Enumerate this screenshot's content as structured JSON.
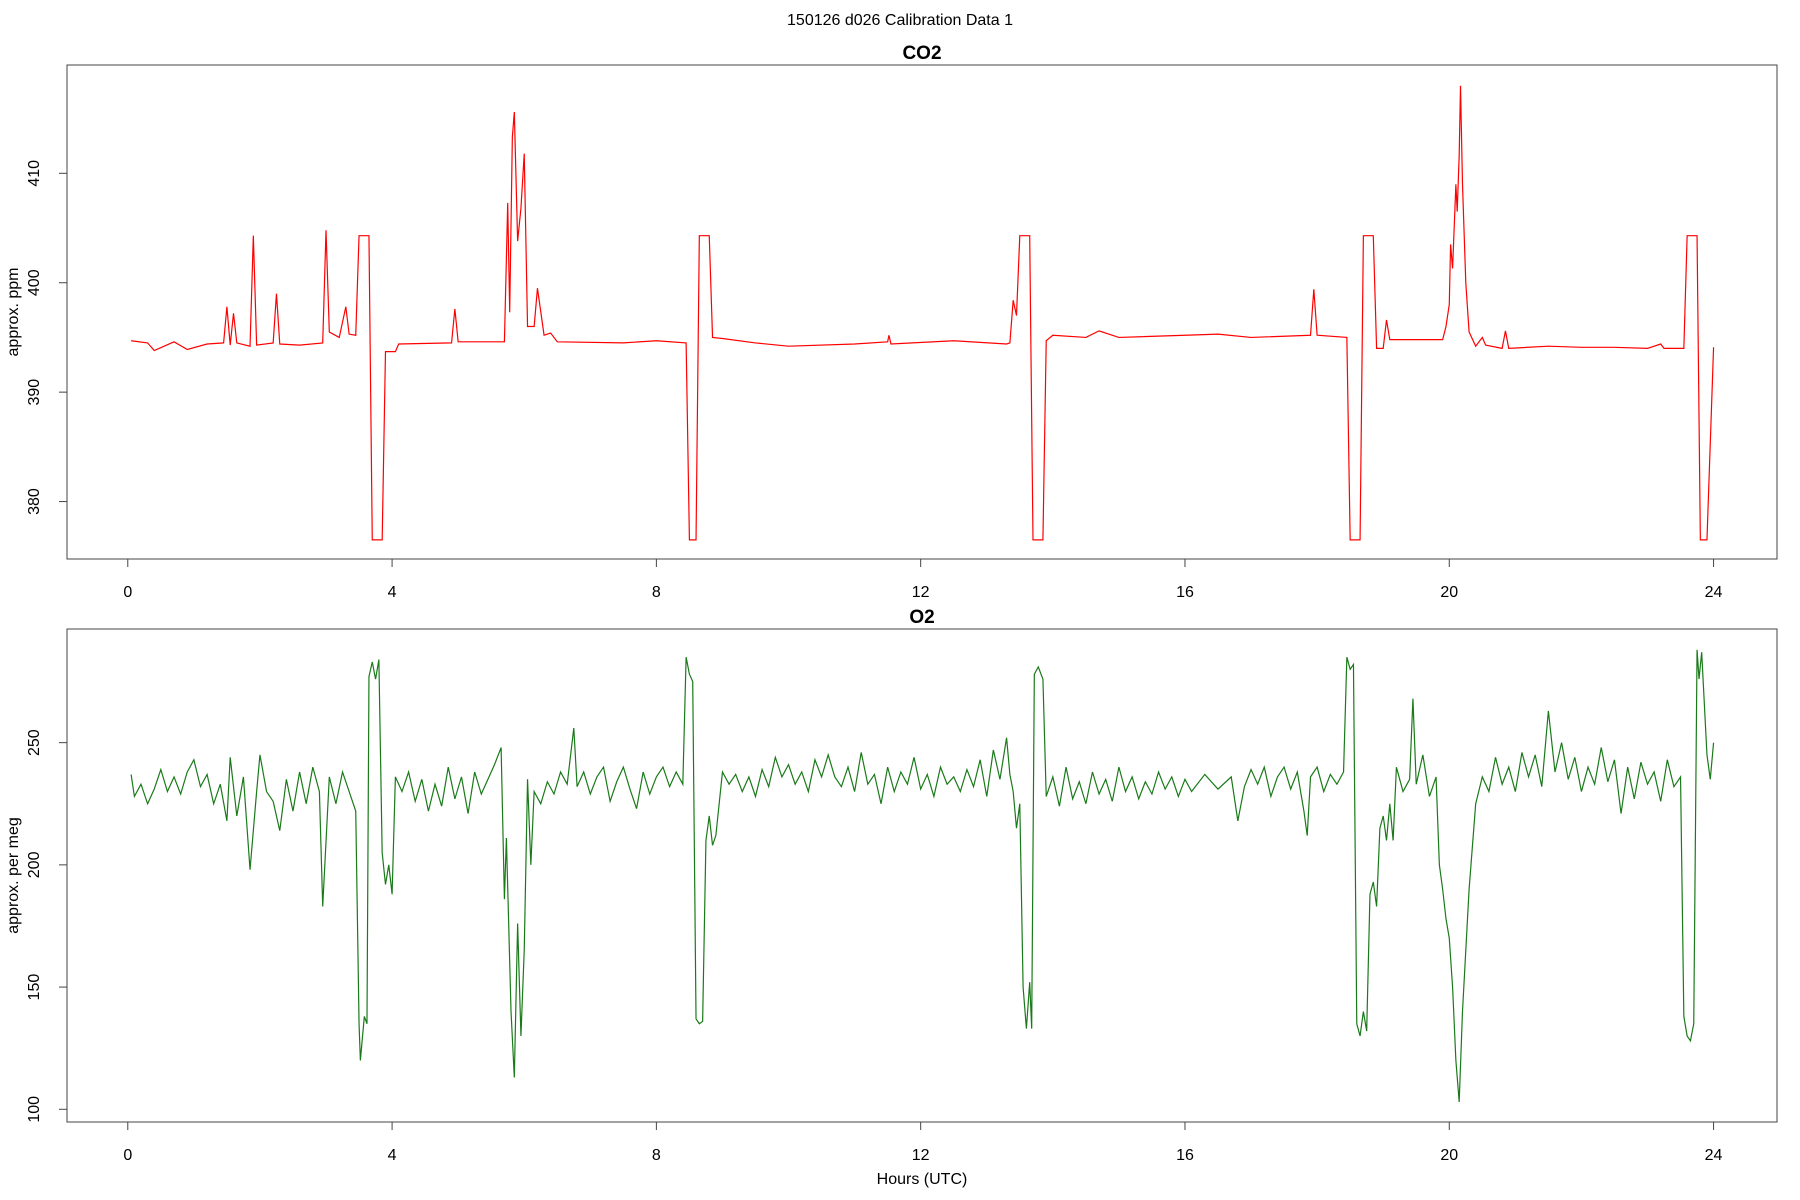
{
  "title": "150126   d026   Calibration Data 1",
  "chart_data": [
    {
      "type": "line",
      "title": "CO2",
      "ylabel": "approx. ppm",
      "xlim": [
        -0.92,
        24.96
      ],
      "xticks": [
        0,
        4,
        8,
        12,
        16,
        20,
        24
      ],
      "ylim": [
        374.75,
        419.9
      ],
      "yticks": [
        380,
        390,
        400,
        410
      ],
      "x": [
        0.05,
        0.3,
        0.4,
        0.7,
        0.9,
        1.2,
        1.45,
        1.5,
        1.55,
        1.6,
        1.65,
        1.85,
        1.9,
        1.95,
        2.2,
        2.25,
        2.3,
        2.6,
        2.95,
        3.0,
        3.05,
        3.2,
        3.3,
        3.35,
        3.45,
        3.5,
        3.6,
        3.65,
        3.7,
        3.85,
        3.9,
        4.05,
        4.1,
        4.9,
        4.95,
        5.0,
        5.7,
        5.75,
        5.78,
        5.82,
        5.85,
        5.9,
        5.95,
        6.0,
        6.05,
        6.15,
        6.2,
        6.3,
        6.4,
        6.5,
        7.5,
        8.0,
        8.45,
        8.5,
        8.6,
        8.65,
        8.8,
        8.85,
        9.0,
        9.5,
        10.0,
        11.0,
        11.5,
        11.52,
        11.55,
        12.5,
        13.3,
        13.35,
        13.4,
        13.45,
        13.5,
        13.65,
        13.7,
        13.85,
        13.9,
        14.0,
        14.5,
        14.7,
        15.0,
        16.0,
        16.5,
        17.0,
        17.9,
        17.95,
        18.0,
        18.45,
        18.5,
        18.65,
        18.7,
        18.85,
        18.9,
        19.0,
        19.05,
        19.1,
        19.5,
        19.9,
        19.95,
        20.0,
        20.02,
        20.05,
        20.1,
        20.12,
        20.15,
        20.17,
        20.2,
        20.25,
        20.3,
        20.4,
        20.5,
        20.55,
        20.8,
        20.85,
        20.9,
        21.5,
        22.0,
        22.5,
        23.0,
        23.2,
        23.25,
        23.55,
        23.6,
        23.75,
        23.8,
        23.9,
        24.0
      ],
      "series": [
        {
          "name": "CO2",
          "color": "#ff0000",
          "values": [
            394.7,
            394.5,
            393.8,
            394.6,
            393.9,
            394.4,
            394.5,
            397.8,
            394.3,
            397.2,
            394.5,
            394.2,
            404.3,
            394.3,
            394.5,
            399,
            394.4,
            394.3,
            394.5,
            404.8,
            395.5,
            395,
            397.8,
            395.3,
            395.2,
            404.3,
            404.3,
            404.3,
            376.5,
            376.5,
            393.7,
            393.7,
            394.4,
            394.5,
            397.6,
            394.6,
            394.6,
            407.3,
            397.3,
            413.3,
            415.6,
            403.8,
            406.8,
            411.8,
            396,
            396,
            399.5,
            395.2,
            395.4,
            394.6,
            394.5,
            394.7,
            394.5,
            376.5,
            376.5,
            404.3,
            404.3,
            395,
            394.9,
            394.5,
            394.2,
            394.4,
            394.6,
            395.2,
            394.4,
            394.7,
            394.4,
            394.5,
            398.4,
            397,
            404.3,
            404.3,
            376.5,
            376.5,
            394.7,
            395.2,
            395,
            395.6,
            395,
            395.2,
            395.3,
            395,
            395.2,
            399.4,
            395.2,
            395,
            376.5,
            376.5,
            404.3,
            404.3,
            394,
            394,
            396.6,
            394.8,
            394.8,
            394.8,
            396,
            398,
            403.5,
            401.3,
            409,
            406.5,
            411.6,
            418,
            409,
            400,
            395.5,
            394.2,
            395,
            394.3,
            394,
            395.6,
            394,
            394.2,
            394.1,
            394.1,
            394,
            394.4,
            394,
            394,
            404.3,
            404.3,
            376.5,
            376.5,
            394.1
          ]
        }
      ]
    },
    {
      "type": "line",
      "title": "O2",
      "ylabel": "approx. per meg",
      "xlabel": "Hours (UTC)",
      "xlim": [
        -0.92,
        24.96
      ],
      "xticks": [
        0,
        4,
        8,
        12,
        16,
        20,
        24
      ],
      "ylim": [
        94.8,
        296.5
      ],
      "yticks": [
        100,
        150,
        200,
        250
      ],
      "x": [
        0.05,
        0.1,
        0.2,
        0.3,
        0.4,
        0.5,
        0.6,
        0.7,
        0.8,
        0.9,
        1.0,
        1.1,
        1.2,
        1.3,
        1.4,
        1.5,
        1.55,
        1.65,
        1.75,
        1.85,
        1.95,
        2.0,
        2.1,
        2.2,
        2.3,
        2.4,
        2.5,
        2.6,
        2.7,
        2.8,
        2.9,
        2.95,
        3.05,
        3.15,
        3.25,
        3.35,
        3.45,
        3.5,
        3.52,
        3.58,
        3.62,
        3.65,
        3.7,
        3.75,
        3.8,
        3.85,
        3.9,
        3.95,
        4.0,
        4.05,
        4.15,
        4.25,
        4.35,
        4.45,
        4.55,
        4.65,
        4.75,
        4.85,
        4.95,
        5.05,
        5.15,
        5.25,
        5.35,
        5.45,
        5.55,
        5.65,
        5.7,
        5.73,
        5.8,
        5.85,
        5.9,
        5.95,
        6.0,
        6.05,
        6.1,
        6.15,
        6.25,
        6.35,
        6.45,
        6.55,
        6.65,
        6.75,
        6.8,
        6.9,
        7.0,
        7.1,
        7.2,
        7.3,
        7.4,
        7.5,
        7.6,
        7.7,
        7.8,
        7.9,
        8.0,
        8.1,
        8.2,
        8.3,
        8.4,
        8.45,
        8.5,
        8.55,
        8.6,
        8.65,
        8.7,
        8.75,
        8.8,
        8.85,
        8.9,
        9.0,
        9.1,
        9.2,
        9.3,
        9.4,
        9.5,
        9.6,
        9.7,
        9.8,
        9.9,
        10.0,
        10.1,
        10.2,
        10.3,
        10.4,
        10.5,
        10.6,
        10.7,
        10.8,
        10.9,
        11.0,
        11.1,
        11.2,
        11.3,
        11.4,
        11.5,
        11.6,
        11.7,
        11.8,
        11.9,
        12.0,
        12.1,
        12.2,
        12.3,
        12.4,
        12.5,
        12.6,
        12.7,
        12.8,
        12.9,
        13.0,
        13.1,
        13.2,
        13.3,
        13.35,
        13.4,
        13.45,
        13.5,
        13.55,
        13.6,
        13.65,
        13.68,
        13.72,
        13.78,
        13.85,
        13.9,
        14.0,
        14.1,
        14.2,
        14.3,
        14.4,
        14.5,
        14.6,
        14.7,
        14.8,
        14.9,
        15.0,
        15.1,
        15.2,
        15.3,
        15.4,
        15.5,
        15.6,
        15.7,
        15.8,
        15.9,
        16.0,
        16.1,
        16.3,
        16.5,
        16.7,
        16.8,
        16.9,
        17.0,
        17.1,
        17.2,
        17.3,
        17.4,
        17.5,
        17.6,
        17.7,
        17.8,
        17.85,
        17.9,
        18.0,
        18.1,
        18.2,
        18.3,
        18.4,
        18.45,
        18.5,
        18.55,
        18.6,
        18.65,
        18.7,
        18.75,
        18.8,
        18.85,
        18.9,
        18.95,
        19.0,
        19.05,
        19.1,
        19.15,
        19.2,
        19.3,
        19.4,
        19.45,
        19.5,
        19.6,
        19.7,
        19.8,
        19.85,
        19.9,
        19.95,
        20.0,
        20.05,
        20.1,
        20.15,
        20.2,
        20.3,
        20.4,
        20.5,
        20.6,
        20.7,
        20.8,
        20.9,
        21.0,
        21.1,
        21.2,
        21.3,
        21.4,
        21.5,
        21.6,
        21.7,
        21.8,
        21.9,
        22.0,
        22.1,
        22.2,
        22.3,
        22.4,
        22.5,
        22.6,
        22.7,
        22.8,
        22.9,
        23.0,
        23.1,
        23.2,
        23.3,
        23.4,
        23.5,
        23.55,
        23.6,
        23.65,
        23.7,
        23.75,
        23.78,
        23.82,
        23.9,
        23.95,
        24.0
      ],
      "series": [
        {
          "name": "O2",
          "color": "#1a7a1a",
          "values": [
            237,
            228,
            233,
            225,
            231,
            239,
            230,
            236,
            229,
            238,
            243,
            232,
            237,
            225,
            233,
            218,
            244,
            220,
            236,
            198,
            230,
            245,
            230,
            226,
            214,
            235,
            222,
            238,
            225,
            240,
            230,
            183,
            236,
            225,
            238,
            230,
            222,
            135,
            120,
            138,
            135,
            277,
            283,
            276,
            284,
            205,
            192,
            200,
            188,
            236,
            230,
            238,
            226,
            235,
            222,
            233,
            224,
            240,
            227,
            236,
            221,
            238,
            229,
            235,
            241,
            248,
            186,
            211,
            140,
            113,
            176,
            130,
            165,
            235,
            200,
            230,
            225,
            234,
            229,
            238,
            233,
            256,
            232,
            238,
            229,
            236,
            240,
            226,
            234,
            240,
            231,
            223,
            238,
            229,
            236,
            240,
            232,
            238,
            233,
            285,
            278,
            275,
            137,
            135,
            136,
            210,
            220,
            208,
            212,
            238,
            233,
            237,
            230,
            236,
            228,
            239,
            232,
            244,
            236,
            241,
            233,
            238,
            230,
            243,
            236,
            245,
            236,
            232,
            240,
            230,
            246,
            233,
            237,
            225,
            240,
            230,
            238,
            233,
            244,
            231,
            237,
            228,
            240,
            233,
            236,
            230,
            239,
            232,
            243,
            228,
            247,
            235,
            252,
            237,
            230,
            215,
            225,
            150,
            133,
            152,
            133,
            278,
            281,
            276,
            228,
            236,
            224,
            240,
            227,
            234,
            225,
            238,
            229,
            235,
            226,
            240,
            230,
            236,
            227,
            234,
            229,
            238,
            231,
            236,
            228,
            235,
            230,
            237,
            231,
            236,
            218,
            232,
            239,
            233,
            240,
            228,
            236,
            240,
            231,
            238,
            222,
            212,
            236,
            240,
            230,
            237,
            233,
            238,
            285,
            280,
            282,
            135,
            130,
            140,
            132,
            188,
            193,
            183,
            215,
            220,
            210,
            225,
            210,
            240,
            230,
            235,
            268,
            233,
            245,
            228,
            236,
            200,
            190,
            178,
            170,
            150,
            120,
            103,
            140,
            190,
            225,
            236,
            230,
            244,
            233,
            240,
            230,
            246,
            236,
            245,
            232,
            263,
            238,
            250,
            235,
            244,
            230,
            240,
            233,
            248,
            234,
            243,
            221,
            240,
            227,
            242,
            233,
            238,
            226,
            243,
            232,
            236,
            138,
            130,
            128,
            135,
            288,
            276,
            287,
            245,
            235,
            250
          ]
        }
      ]
    }
  ]
}
